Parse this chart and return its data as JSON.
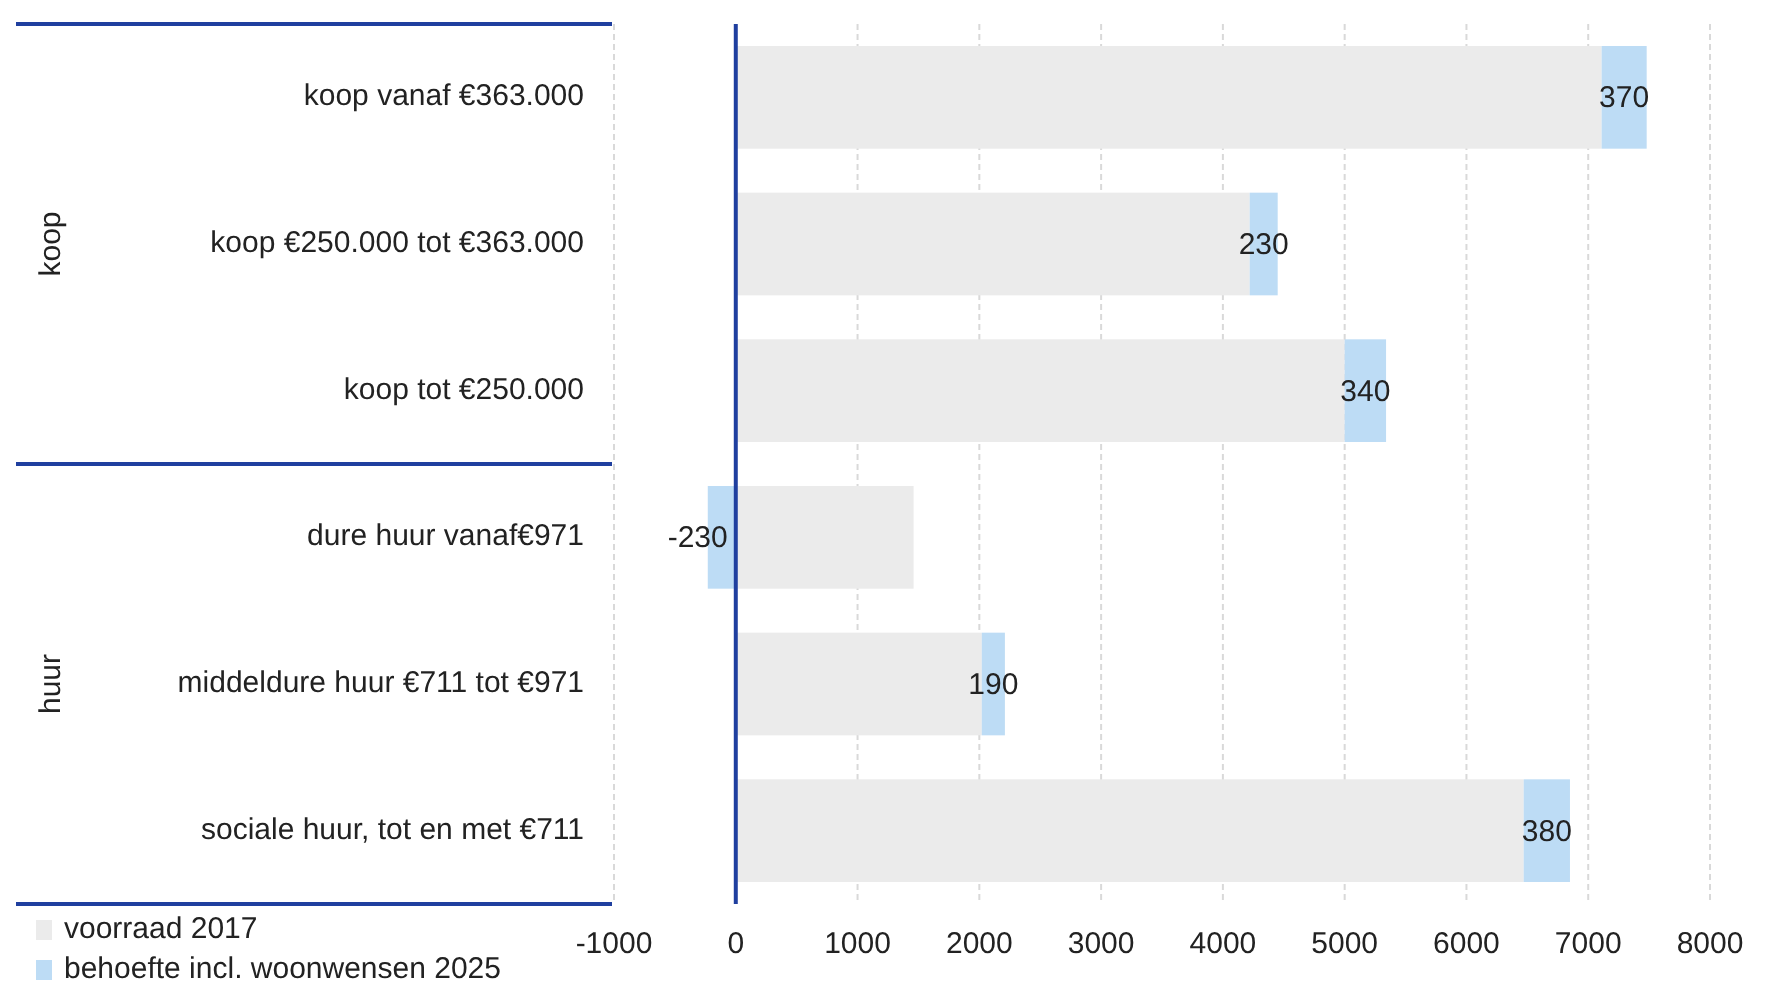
{
  "chart_data": {
    "type": "bar",
    "orientation": "horizontal",
    "stacked": true,
    "categories": [
      "koop vanaf €363.000",
      "koop €250.000 tot €363.000",
      "koop tot €250.000",
      "dure huur vanaf€971",
      "middeldure huur €711 tot €971",
      "sociale huur, tot en met €711"
    ],
    "series": [
      {
        "name": "voorraad 2017",
        "color": "#ebebeb",
        "values": [
          7110,
          4220,
          5000,
          1460,
          2020,
          6470
        ]
      },
      {
        "name": "behoefte incl. woonwensen 2025",
        "color": "#bddcf5",
        "values": [
          370,
          230,
          340,
          -230,
          190,
          380
        ],
        "value_labels": [
          "370",
          "230",
          "340",
          "-230",
          "190",
          "380"
        ]
      }
    ],
    "xlim": [
      -1000,
      8000
    ],
    "xticks": [
      -1000,
      0,
      1000,
      2000,
      3000,
      4000,
      5000,
      6000,
      7000,
      8000
    ],
    "grid": "x",
    "legend": "bottom left",
    "ref_lines": [
      {
        "axis": "x",
        "value": 0,
        "color": "#1f3f9f"
      }
    ],
    "annotations": [
      "koop",
      "huur"
    ]
  }
}
